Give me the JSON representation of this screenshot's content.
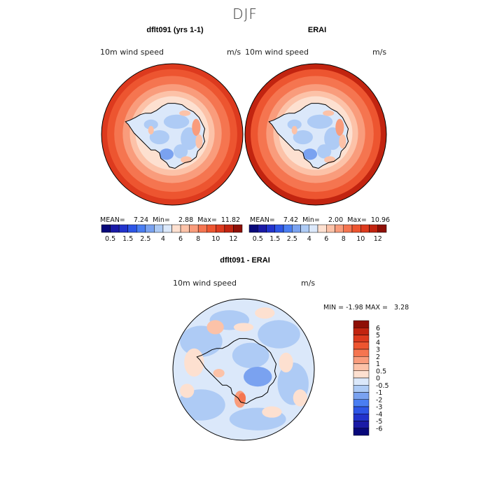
{
  "title": "DJF",
  "panels": [
    {
      "title": "dflt091 (yrs 1-1)",
      "variable": "10m wind speed",
      "units": "m/s",
      "stats": {
        "mean_label": "MEAN=",
        "mean": "7.24",
        "min_label": "Min=",
        "min": "2.88",
        "max_label": "Max=",
        "max": "11.82"
      }
    },
    {
      "title": "ERAI",
      "variable": "10m wind speed",
      "units": "m/s",
      "stats": {
        "mean_label": "MEAN=",
        "mean": "7.42",
        "min_label": "Min=",
        "min": "2.00",
        "max_label": "Max=",
        "max": "10.96"
      }
    },
    {
      "title": "dflt091 - ERAI",
      "variable": "10m wind speed",
      "units": "m/s",
      "stats": {
        "min_label": "MIN =",
        "min": "-1.98",
        "max_label": "MAX =",
        "max": "3.28"
      }
    }
  ],
  "chart_data": {
    "type": "heatmap",
    "projection": "south polar stereographic",
    "region": "Antarctica",
    "season": "DJF",
    "field_colorbar": {
      "tick_labels": [
        "0.5",
        "1.5",
        "2.5",
        "4",
        "6",
        "8",
        "10",
        "12"
      ],
      "levels": [
        0.5,
        1,
        1.5,
        2,
        2.5,
        3,
        4,
        5,
        6,
        7,
        8,
        9,
        10,
        11,
        12
      ],
      "colors": [
        "#08087a",
        "#1a1aa6",
        "#2233cc",
        "#2e56e6",
        "#4a7ef2",
        "#7aa2f0",
        "#aecbf5",
        "#dbe8fa",
        "#fde0d0",
        "#fcc2a8",
        "#f99c7c",
        "#f57550",
        "#ed5530",
        "#dd3a1e",
        "#c22410",
        "#8e0f06"
      ]
    },
    "diff_colorbar": {
      "tick_labels": [
        "6",
        "5",
        "4",
        "3",
        "2",
        "1",
        "0.5",
        "0",
        "-0.5",
        "-1",
        "-2",
        "-3",
        "-4",
        "-5",
        "-6"
      ],
      "colors": [
        "#8e0f06",
        "#c22410",
        "#dd3a1e",
        "#ed5530",
        "#f57550",
        "#f99c7c",
        "#fcc2a8",
        "#fde0d0",
        "#dbe8fa",
        "#aecbf5",
        "#7aa2f0",
        "#4a7ef2",
        "#2e56e6",
        "#2233cc",
        "#1a1aa6",
        "#08087a"
      ]
    },
    "maps": [
      {
        "name": "dflt091 (yrs 1-1)",
        "mean": 7.24,
        "min": 2.88,
        "max": 11.82
      },
      {
        "name": "ERAI",
        "mean": 7.42,
        "min": 2.0,
        "max": 10.96
      },
      {
        "name": "dflt091 - ERAI",
        "min": -1.98,
        "max": 3.28
      }
    ]
  }
}
